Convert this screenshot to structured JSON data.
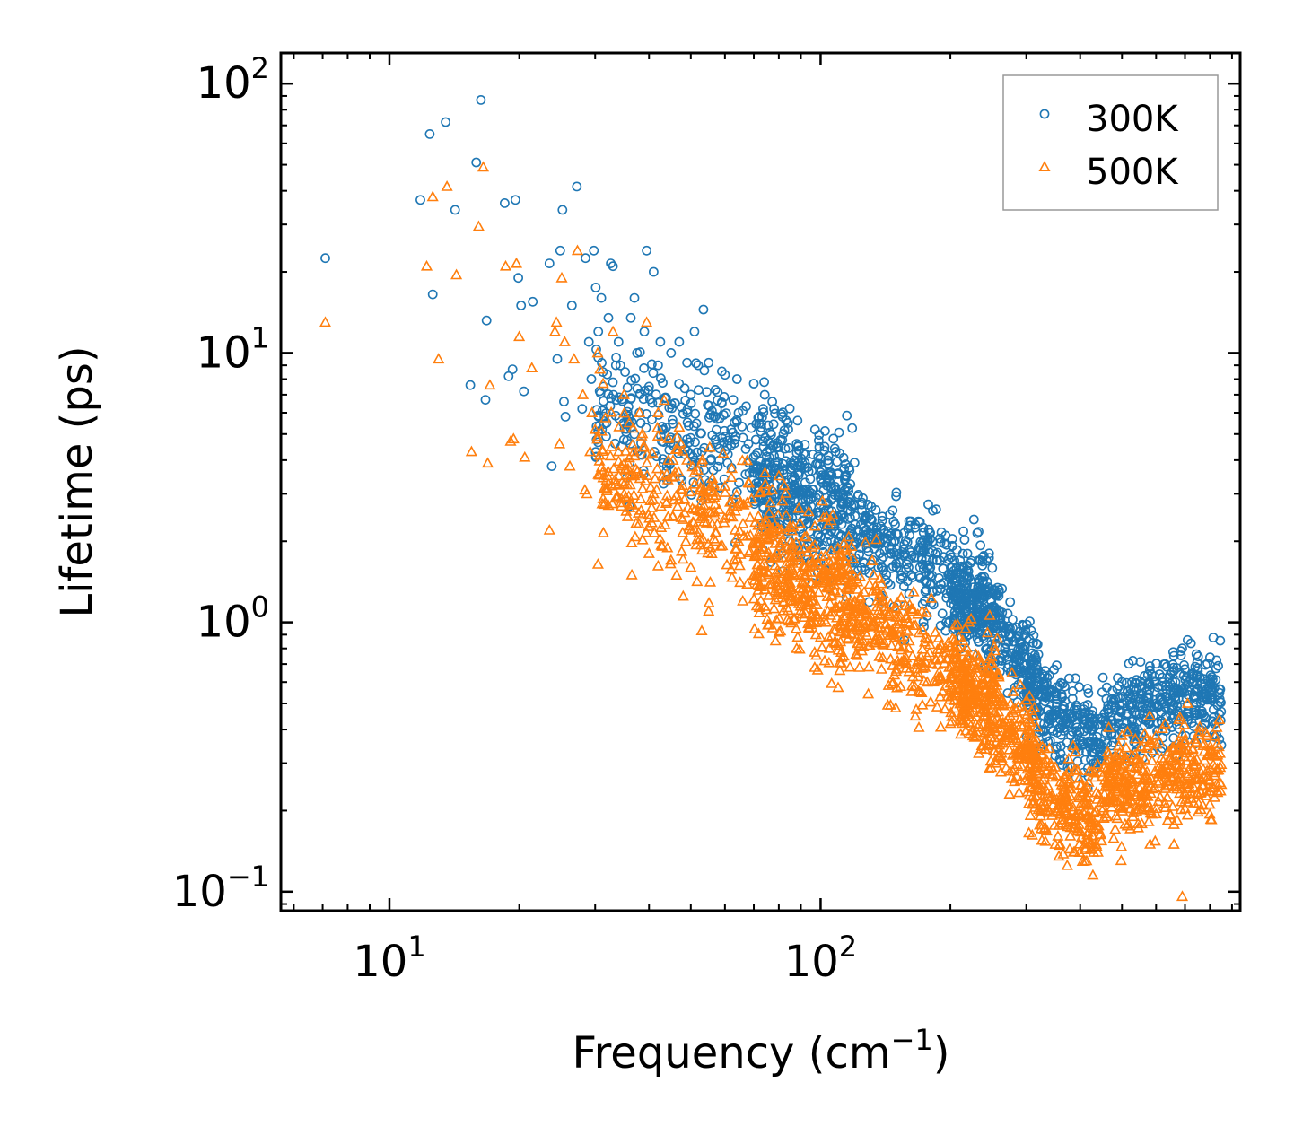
{
  "chart_data": {
    "type": "scatter",
    "title": "",
    "xlabel": {
      "base": "Frequency (cm",
      "sup": "−1",
      "suffix": ")"
    },
    "ylabel": "Lifetime (ps)",
    "xscale": "log",
    "yscale": "log",
    "xlim": [
      5.6,
      940
    ],
    "ylim": [
      0.085,
      130
    ],
    "x_ticks": [
      {
        "value": 10,
        "base": "10",
        "exp": "1"
      },
      {
        "value": 100,
        "base": "10",
        "exp": "2"
      }
    ],
    "y_ticks": [
      {
        "value": 0.1,
        "base": "10",
        "exp": "−1"
      },
      {
        "value": 1,
        "base": "10",
        "exp": "0"
      },
      {
        "value": 10,
        "base": "10",
        "exp": "1"
      },
      {
        "value": 100,
        "base": "10",
        "exp": "2"
      }
    ],
    "grid": false,
    "legend_position": "top-right",
    "series": [
      {
        "name": "300K",
        "marker": "circle",
        "color": "#1f77b4",
        "points": [
          [
            7.1,
            22.5
          ],
          [
            11.8,
            37
          ],
          [
            12.4,
            65
          ],
          [
            12.6,
            16.5
          ],
          [
            13.5,
            72
          ],
          [
            14.2,
            34
          ],
          [
            15.4,
            7.6
          ],
          [
            15.9,
            51
          ],
          [
            16.3,
            87
          ],
          [
            16.7,
            6.7
          ],
          [
            16.8,
            13.2
          ],
          [
            18.5,
            36
          ],
          [
            18.9,
            8.2
          ],
          [
            19.3,
            8.7
          ],
          [
            19.6,
            37
          ],
          [
            19.9,
            19
          ],
          [
            20.2,
            15
          ],
          [
            20.5,
            7.2
          ],
          [
            21.5,
            15.5
          ],
          [
            23.5,
            21.5
          ],
          [
            23.8,
            3.8
          ],
          [
            24.5,
            9.5
          ],
          [
            24.9,
            24
          ],
          [
            25.2,
            34
          ],
          [
            25.4,
            6.6
          ],
          [
            25.6,
            5.8
          ],
          [
            26.5,
            15
          ],
          [
            27.2,
            41.5
          ],
          [
            28,
            6.2
          ],
          [
            28.5,
            22.5
          ],
          [
            29,
            11
          ],
          [
            29.4,
            8
          ],
          [
            29.8,
            24
          ],
          [
            30.1,
            17.5
          ],
          [
            30.5,
            12
          ],
          [
            31,
            16
          ],
          [
            31.4,
            7.5
          ],
          [
            31.9,
            5.5
          ],
          [
            32.2,
            13.5
          ],
          [
            32.6,
            21.5
          ],
          [
            33,
            21
          ],
          [
            33.5,
            9
          ],
          [
            34,
            11
          ],
          [
            34.5,
            4.5
          ],
          [
            35.2,
            8.5
          ],
          [
            36,
            2.7
          ],
          [
            36.3,
            13.5
          ],
          [
            37,
            16
          ],
          [
            37.5,
            10
          ],
          [
            38,
            6
          ],
          [
            38.3,
            4.2
          ],
          [
            39,
            12
          ],
          [
            39.5,
            24
          ],
          [
            40,
            7.5
          ],
          [
            41,
            20
          ],
          [
            42,
            9
          ],
          [
            42.5,
            11
          ],
          [
            43.5,
            6.8
          ],
          [
            44,
            3.8
          ],
          [
            45,
            10
          ],
          [
            46,
            6.5
          ],
          [
            47,
            11
          ],
          [
            48,
            4.6
          ],
          [
            49,
            9.2
          ],
          [
            50,
            7
          ],
          [
            51,
            12
          ],
          [
            52,
            9
          ],
          [
            53.5,
            14.5
          ],
          [
            55,
            9.2
          ],
          [
            57,
            7.3
          ],
          [
            59,
            6.5
          ],
          [
            60,
            8.3
          ],
          [
            62,
            5.2
          ],
          [
            64,
            8
          ],
          [
            66,
            6.1
          ],
          [
            68,
            4.6
          ],
          [
            70,
            7.7
          ],
          [
            72,
            5.8
          ],
          [
            74,
            7.8
          ],
          [
            76,
            4.1
          ],
          [
            78,
            6.2
          ],
          [
            80,
            3.6
          ],
          [
            84,
            5.5
          ],
          [
            88,
            4.6
          ],
          [
            92,
            3.9
          ],
          [
            96,
            4.2
          ],
          [
            100,
            3.6
          ],
          [
            105,
            3.5
          ],
          [
            110,
            2.4
          ],
          [
            116,
            2.9
          ],
          [
            124,
            2.3
          ],
          [
            132,
            1.7
          ],
          [
            140,
            2.2
          ],
          [
            150,
            1.6
          ],
          [
            160,
            1.7
          ],
          [
            170,
            1.6
          ],
          [
            182,
            1.7
          ],
          [
            195,
            2.1
          ],
          [
            205,
            1.4
          ],
          [
            215,
            1.6
          ],
          [
            230,
            1.3
          ],
          [
            245,
            1.35
          ],
          [
            260,
            1.1
          ],
          [
            275,
            0.95
          ],
          [
            290,
            0.75
          ],
          [
            310,
            0.55
          ],
          [
            330,
            0.42
          ],
          [
            350,
            0.32
          ],
          [
            370,
            0.42
          ],
          [
            390,
            0.62
          ],
          [
            410,
            0.42
          ],
          [
            430,
            0.3
          ],
          [
            450,
            0.55
          ],
          [
            475,
            0.42
          ],
          [
            500,
            0.6
          ],
          [
            530,
            0.72
          ],
          [
            555,
            0.58
          ],
          [
            580,
            0.42
          ],
          [
            600,
            0.5
          ],
          [
            630,
            0.7
          ],
          [
            660,
            0.75
          ],
          [
            690,
            0.8
          ],
          [
            710,
            0.86
          ],
          [
            730,
            0.6
          ],
          [
            760,
            0.4
          ],
          [
            790,
            0.52
          ],
          [
            820,
            0.42
          ],
          [
            850,
            0.35
          ]
        ],
        "bands": [
          {
            "x": [
              30,
              120
            ],
            "y_center": [
              6.5,
              3.2
            ],
            "spread": 0.65,
            "count": 420
          },
          {
            "x": [
              70,
              260
            ],
            "y_center": [
              3.2,
              1.2
            ],
            "spread": 0.55,
            "count": 650
          },
          {
            "x": [
              200,
              320
            ],
            "y_center": [
              1.3,
              0.65
            ],
            "spread": 0.45,
            "count": 300
          },
          {
            "x": [
              300,
              450
            ],
            "y_center": [
              0.55,
              0.36
            ],
            "spread": 0.45,
            "count": 260
          },
          {
            "x": [
              450,
              850
            ],
            "y_center": [
              0.45,
              0.55
            ],
            "spread": 0.45,
            "count": 380
          }
        ]
      },
      {
        "name": "500K",
        "marker": "triangle",
        "color": "#ff7f0e",
        "points": [
          [
            7.1,
            13
          ],
          [
            12.2,
            21
          ],
          [
            12.6,
            38
          ],
          [
            13,
            9.5
          ],
          [
            13.6,
            41.5
          ],
          [
            14.3,
            19.5
          ],
          [
            15.5,
            4.3
          ],
          [
            16.1,
            29.5
          ],
          [
            16.5,
            49
          ],
          [
            16.9,
            3.9
          ],
          [
            17.1,
            7.6
          ],
          [
            18.6,
            21
          ],
          [
            19.1,
            4.7
          ],
          [
            19.4,
            4.8
          ],
          [
            19.7,
            21.5
          ],
          [
            20,
            11.5
          ],
          [
            20.6,
            4.1
          ],
          [
            21.4,
            8.8
          ],
          [
            23.5,
            2.2
          ],
          [
            24.2,
            12
          ],
          [
            24.4,
            13
          ],
          [
            24.8,
            4.6
          ],
          [
            25.1,
            19
          ],
          [
            25.5,
            11
          ],
          [
            26.2,
            3.8
          ],
          [
            26.8,
            9.5
          ],
          [
            27.3,
            24
          ],
          [
            28.1,
            7
          ],
          [
            28.4,
            3.1
          ],
          [
            28.7,
            3
          ],
          [
            29.2,
            4.3
          ],
          [
            29.5,
            6
          ],
          [
            30,
            5.2
          ],
          [
            30.4,
            10
          ],
          [
            30.8,
            8.7
          ],
          [
            31.3,
            7.7
          ],
          [
            32,
            3.5
          ],
          [
            33,
            12
          ],
          [
            34,
            4.3
          ],
          [
            34.5,
            2.7
          ],
          [
            35,
            7
          ],
          [
            36,
            5.5
          ],
          [
            36.5,
            1.5
          ],
          [
            37,
            3.5
          ],
          [
            38,
            6
          ],
          [
            38.6,
            2.5
          ],
          [
            39,
            4.5
          ],
          [
            39.5,
            13
          ],
          [
            40,
            1.8
          ],
          [
            41,
            3
          ],
          [
            42,
            6
          ],
          [
            43,
            3.5
          ],
          [
            44,
            2.8
          ],
          [
            45,
            1.7
          ],
          [
            46,
            3.6
          ],
          [
            47,
            5.3
          ],
          [
            48,
            1.25
          ],
          [
            49,
            4
          ],
          [
            50,
            1.6
          ],
          [
            51,
            3.6
          ],
          [
            52,
            2.6
          ],
          [
            53,
            0.93
          ],
          [
            55,
            1.1
          ],
          [
            57,
            2
          ],
          [
            60,
            3.2
          ],
          [
            63,
            1.7
          ],
          [
            66,
            1.2
          ],
          [
            68,
            3.3
          ],
          [
            70,
            1.5
          ],
          [
            73,
            1.9
          ],
          [
            76,
            0.98
          ],
          [
            80,
            3.5
          ],
          [
            84,
            1.3
          ],
          [
            88,
            0.8
          ],
          [
            92,
            1.5
          ],
          [
            96,
            1.2
          ],
          [
            100,
            0.88
          ],
          [
            105,
            1.5
          ],
          [
            112,
            0.74
          ],
          [
            120,
            1.2
          ],
          [
            130,
            0.82
          ],
          [
            140,
            1.2
          ],
          [
            150,
            0.67
          ],
          [
            160,
            0.8
          ],
          [
            172,
            1.1
          ],
          [
            185,
            0.73
          ],
          [
            195,
            0.58
          ],
          [
            205,
            0.48
          ],
          [
            215,
            0.65
          ],
          [
            230,
            0.55
          ],
          [
            245,
            0.42
          ],
          [
            260,
            0.35
          ],
          [
            275,
            0.28
          ],
          [
            290,
            0.34
          ],
          [
            310,
            0.26
          ],
          [
            330,
            0.17
          ],
          [
            350,
            0.15
          ],
          [
            370,
            0.2
          ],
          [
            390,
            0.33
          ],
          [
            410,
            0.13
          ],
          [
            430,
            0.14
          ],
          [
            450,
            0.2
          ],
          [
            475,
            0.3
          ],
          [
            500,
            0.38
          ],
          [
            530,
            0.19
          ],
          [
            555,
            0.23
          ],
          [
            580,
            0.45
          ],
          [
            600,
            0.38
          ],
          [
            630,
            0.42
          ],
          [
            660,
            0.15
          ],
          [
            690,
            0.096
          ],
          [
            710,
            0.5
          ],
          [
            730,
            0.34
          ],
          [
            760,
            0.28
          ],
          [
            790,
            0.32
          ],
          [
            820,
            0.27
          ],
          [
            850,
            0.25
          ]
        ],
        "bands": [
          {
            "x": [
              30,
              120
            ],
            "y_center": [
              3.8,
              1.5
            ],
            "spread": 0.7,
            "count": 420
          },
          {
            "x": [
              70,
              260
            ],
            "y_center": [
              1.6,
              0.55
            ],
            "spread": 0.6,
            "count": 650
          },
          {
            "x": [
              200,
              320
            ],
            "y_center": [
              0.6,
              0.32
            ],
            "spread": 0.5,
            "count": 300
          },
          {
            "x": [
              300,
              450
            ],
            "y_center": [
              0.26,
              0.18
            ],
            "spread": 0.5,
            "count": 260
          },
          {
            "x": [
              450,
              850
            ],
            "y_center": [
              0.24,
              0.3
            ],
            "spread": 0.5,
            "count": 380
          }
        ]
      }
    ]
  }
}
